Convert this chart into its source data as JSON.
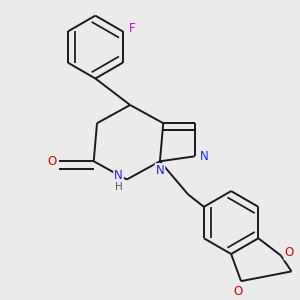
{
  "background_color": "#ebebeb",
  "bond_color": "#1a1a1a",
  "bond_width": 1.4,
  "atom_colors": {
    "N": "#2020ff",
    "O": "#dd0000",
    "F": "#dd00dd",
    "H": "#555555",
    "C": "#1a1a1a"
  },
  "font_size_atom": 8.5,
  "font_size_H": 7.5
}
